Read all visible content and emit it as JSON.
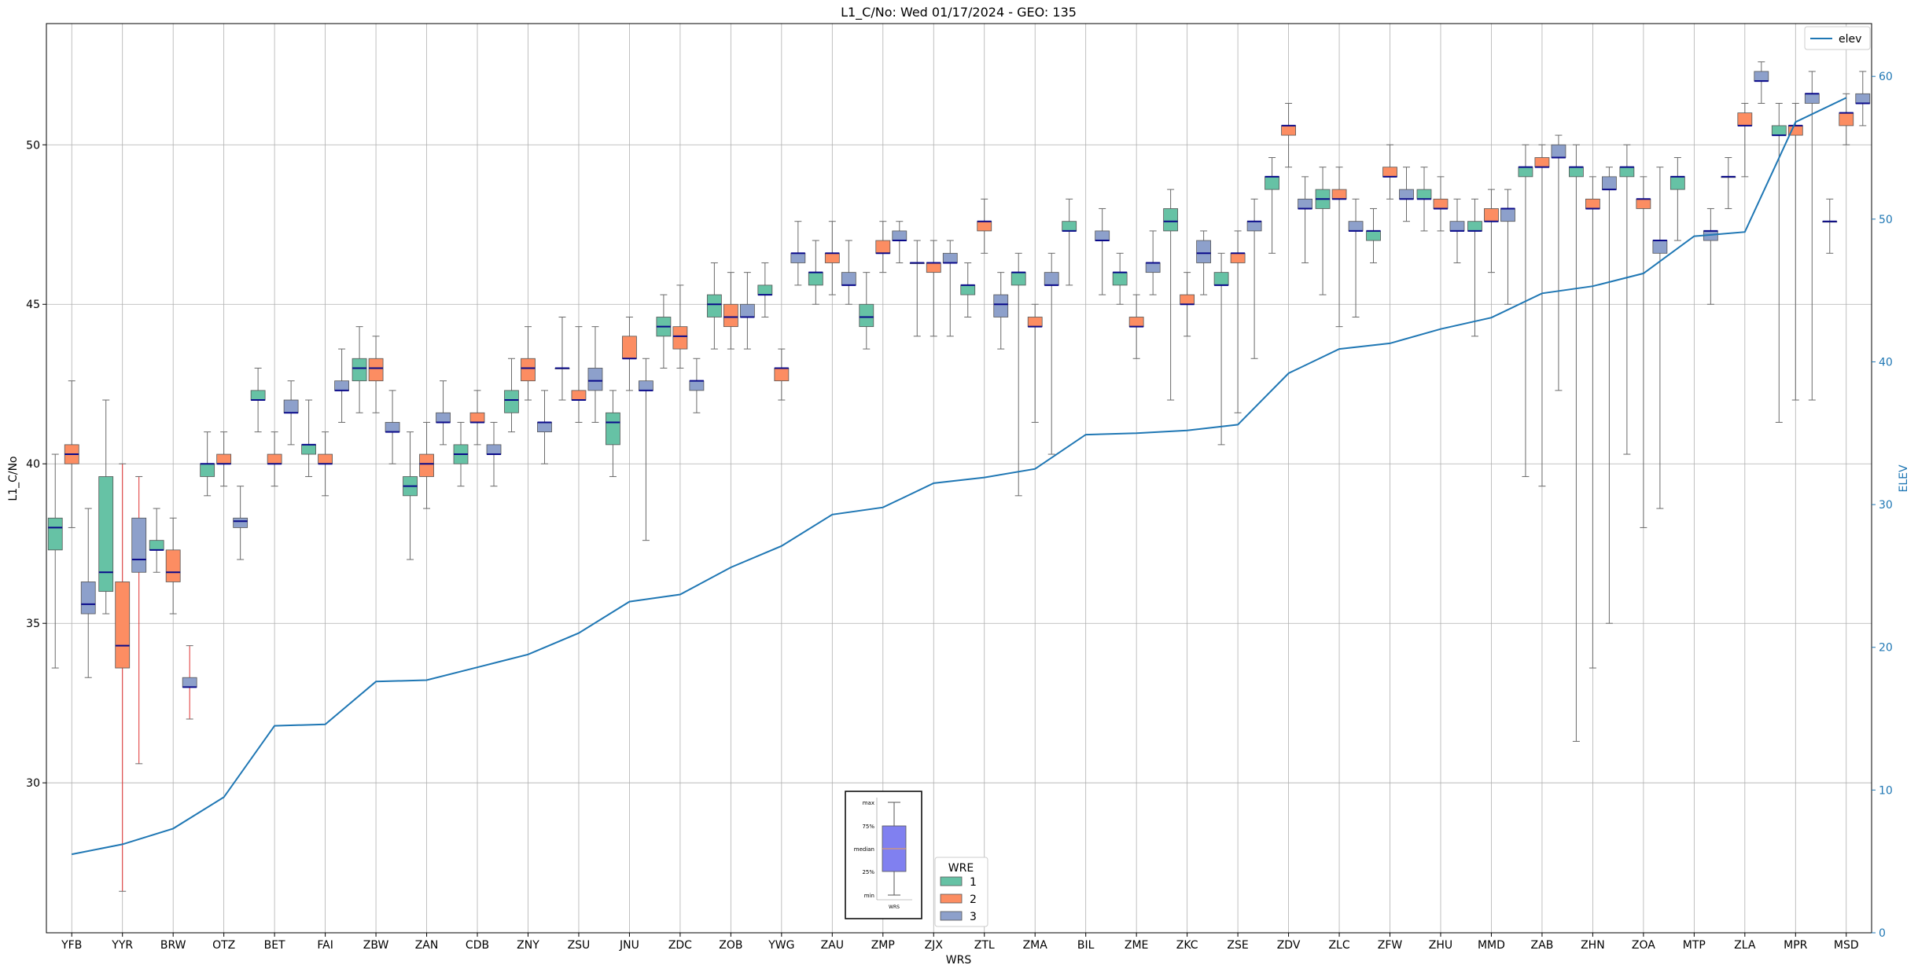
{
  "chart_data": {
    "type": "box",
    "title": "L1_C/No: Wed 01/17/2024 - GEO: 135",
    "xlabel": "WRS",
    "ylabel": "L1_C/No",
    "y2label": "ELEV",
    "ylim": [
      25.3,
      53.8
    ],
    "y2lim": [
      0,
      63.7
    ],
    "yticks": [
      30,
      35,
      40,
      45,
      50
    ],
    "y2ticks": [
      0,
      10,
      20,
      30,
      40,
      50,
      60
    ],
    "grid": true,
    "stations": [
      "YFB",
      "YYR",
      "BRW",
      "OTZ",
      "BET",
      "FAI",
      "ZBW",
      "ZAN",
      "CDB",
      "ZNY",
      "ZSU",
      "JNU",
      "ZDC",
      "ZOB",
      "YWG",
      "ZAU",
      "ZMP",
      "ZJX",
      "ZTL",
      "ZMA",
      "BIL",
      "ZME",
      "ZKC",
      "ZSE",
      "ZDV",
      "ZLC",
      "ZFW",
      "ZHU",
      "MMD",
      "ZAB",
      "ZHN",
      "ZOA",
      "MTP",
      "ZLA",
      "MPR",
      "MSD"
    ],
    "series_colors": {
      "1": "#66c2a5",
      "2": "#fc8d62",
      "3": "#8da0cb"
    },
    "legend_main": {
      "entries": [
        "elev"
      ],
      "placement": "top-right"
    },
    "legend_wre": {
      "title": "WRE",
      "entries": [
        "1",
        "2",
        "3"
      ],
      "placement": "bottom-center"
    },
    "box_key": {
      "labels": [
        "max",
        "75%",
        "median",
        "25%",
        "min"
      ],
      "xlabel": "WRS"
    },
    "elev": {
      "name": "elev",
      "color": "#1f77b4",
      "values": [
        5.5,
        6.2,
        7.3,
        9.5,
        14.5,
        14.6,
        17.6,
        17.7,
        18.6,
        19.5,
        21.0,
        23.2,
        23.7,
        25.6,
        27.1,
        29.3,
        29.8,
        31.5,
        31.9,
        32.5,
        34.9,
        35.0,
        35.2,
        35.6,
        39.2,
        40.9,
        41.3,
        42.3,
        43.1,
        44.8,
        45.3,
        46.2,
        48.8,
        49.1,
        56.8,
        58.5
      ]
    },
    "boxes": [
      {
        "station": "YFB",
        "wre": 1,
        "min": 33.6,
        "q1": 37.3,
        "median": 38.0,
        "q3": 38.3,
        "max": 40.3
      },
      {
        "station": "YFB",
        "wre": 2,
        "min": 38.0,
        "q1": 40.0,
        "median": 40.3,
        "q3": 40.6,
        "max": 42.6
      },
      {
        "station": "YFB",
        "wre": 3,
        "min": 33.3,
        "q1": 35.3,
        "median": 35.6,
        "q3": 36.3,
        "max": 38.6
      },
      {
        "station": "YYR",
        "wre": 1,
        "min": 35.3,
        "q1": 36.0,
        "median": 36.6,
        "q3": 39.6,
        "max": 42.0
      },
      {
        "station": "YYR",
        "wre": 2,
        "min": 26.6,
        "q1": 33.6,
        "median": 34.3,
        "q3": 36.3,
        "max": 40.0
      },
      {
        "station": "YYR",
        "wre": 3,
        "min": 30.6,
        "q1": 36.6,
        "median": 37.0,
        "q3": 38.3,
        "max": 39.6
      },
      {
        "station": "BRW",
        "wre": 1,
        "min": 36.6,
        "q1": 37.3,
        "median": 37.3,
        "q3": 37.6,
        "max": 38.6
      },
      {
        "station": "BRW",
        "wre": 2,
        "min": 35.3,
        "q1": 36.3,
        "median": 36.6,
        "q3": 37.3,
        "max": 38.3
      },
      {
        "station": "BRW",
        "wre": 3,
        "min": 32.0,
        "q1": 33.0,
        "median": 33.0,
        "q3": 33.3,
        "max": 34.3
      },
      {
        "station": "OTZ",
        "wre": 1,
        "min": 39.0,
        "q1": 39.6,
        "median": 40.0,
        "q3": 40.0,
        "max": 41.0
      },
      {
        "station": "OTZ",
        "wre": 2,
        "min": 39.3,
        "q1": 40.0,
        "median": 40.0,
        "q3": 40.3,
        "max": 41.0
      },
      {
        "station": "OTZ",
        "wre": 3,
        "min": 37.0,
        "q1": 38.0,
        "median": 38.2,
        "q3": 38.3,
        "max": 39.3
      },
      {
        "station": "BET",
        "wre": 1,
        "min": 41.0,
        "q1": 42.0,
        "median": 42.0,
        "q3": 42.3,
        "max": 43.0
      },
      {
        "station": "BET",
        "wre": 2,
        "min": 39.3,
        "q1": 40.0,
        "median": 40.0,
        "q3": 40.3,
        "max": 41.0
      },
      {
        "station": "BET",
        "wre": 3,
        "min": 40.6,
        "q1": 41.6,
        "median": 41.6,
        "q3": 42.0,
        "max": 42.6
      },
      {
        "station": "FAI",
        "wre": 1,
        "min": 39.6,
        "q1": 40.3,
        "median": 40.6,
        "q3": 40.6,
        "max": 42.0
      },
      {
        "station": "FAI",
        "wre": 2,
        "min": 39.0,
        "q1": 40.0,
        "median": 40.0,
        "q3": 40.3,
        "max": 41.0
      },
      {
        "station": "FAI",
        "wre": 3,
        "min": 41.3,
        "q1": 42.3,
        "median": 42.3,
        "q3": 42.6,
        "max": 43.6
      },
      {
        "station": "ZBW",
        "wre": 1,
        "min": 41.6,
        "q1": 42.6,
        "median": 43.0,
        "q3": 43.3,
        "max": 44.3
      },
      {
        "station": "ZBW",
        "wre": 2,
        "min": 41.6,
        "q1": 42.6,
        "median": 43.0,
        "q3": 43.3,
        "max": 44.0
      },
      {
        "station": "ZBW",
        "wre": 3,
        "min": 40.0,
        "q1": 41.0,
        "median": 41.0,
        "q3": 41.3,
        "max": 42.3
      },
      {
        "station": "ZAN",
        "wre": 1,
        "min": 37.0,
        "q1": 39.0,
        "median": 39.3,
        "q3": 39.6,
        "max": 41.0
      },
      {
        "station": "ZAN",
        "wre": 2,
        "min": 38.6,
        "q1": 39.6,
        "median": 40.0,
        "q3": 40.3,
        "max": 41.3
      },
      {
        "station": "ZAN",
        "wre": 3,
        "min": 40.6,
        "q1": 41.3,
        "median": 41.3,
        "q3": 41.6,
        "max": 42.6
      },
      {
        "station": "CDB",
        "wre": 1,
        "min": 39.3,
        "q1": 40.0,
        "median": 40.3,
        "q3": 40.6,
        "max": 41.3
      },
      {
        "station": "CDB",
        "wre": 2,
        "min": 40.6,
        "q1": 41.3,
        "median": 41.3,
        "q3": 41.6,
        "max": 42.3
      },
      {
        "station": "CDB",
        "wre": 3,
        "min": 39.3,
        "q1": 40.3,
        "median": 40.3,
        "q3": 40.6,
        "max": 41.3
      },
      {
        "station": "ZNY",
        "wre": 1,
        "min": 41.0,
        "q1": 41.6,
        "median": 42.0,
        "q3": 42.3,
        "max": 43.3
      },
      {
        "station": "ZNY",
        "wre": 2,
        "min": 42.0,
        "q1": 42.6,
        "median": 43.0,
        "q3": 43.3,
        "max": 44.3
      },
      {
        "station": "ZNY",
        "wre": 3,
        "min": 40.0,
        "q1": 41.0,
        "median": 41.3,
        "q3": 41.3,
        "max": 42.3
      },
      {
        "station": "ZSU",
        "wre": 1,
        "min": 42.0,
        "q1": 43.0,
        "median": 43.0,
        "q3": 43.0,
        "max": 44.6
      },
      {
        "station": "ZSU",
        "wre": 2,
        "min": 41.3,
        "q1": 42.0,
        "median": 42.0,
        "q3": 42.3,
        "max": 44.3
      },
      {
        "station": "ZSU",
        "wre": 3,
        "min": 41.3,
        "q1": 42.3,
        "median": 42.6,
        "q3": 43.0,
        "max": 44.3
      },
      {
        "station": "JNU",
        "wre": 1,
        "min": 39.6,
        "q1": 40.6,
        "median": 41.3,
        "q3": 41.6,
        "max": 42.3
      },
      {
        "station": "JNU",
        "wre": 2,
        "min": 42.3,
        "q1": 43.3,
        "median": 43.3,
        "q3": 44.0,
        "max": 44.6
      },
      {
        "station": "JNU",
        "wre": 3,
        "min": 37.6,
        "q1": 42.3,
        "median": 42.3,
        "q3": 42.6,
        "max": 43.3
      },
      {
        "station": "ZDC",
        "wre": 1,
        "min": 43.0,
        "q1": 44.0,
        "median": 44.3,
        "q3": 44.6,
        "max": 45.3
      },
      {
        "station": "ZDC",
        "wre": 2,
        "min": 43.0,
        "q1": 43.6,
        "median": 44.0,
        "q3": 44.3,
        "max": 45.6
      },
      {
        "station": "ZDC",
        "wre": 3,
        "min": 41.6,
        "q1": 42.3,
        "median": 42.6,
        "q3": 42.6,
        "max": 43.3
      },
      {
        "station": "ZOB",
        "wre": 1,
        "min": 43.6,
        "q1": 44.6,
        "median": 45.0,
        "q3": 45.3,
        "max": 46.3
      },
      {
        "station": "ZOB",
        "wre": 2,
        "min": 43.6,
        "q1": 44.3,
        "median": 44.6,
        "q3": 45.0,
        "max": 46.0
      },
      {
        "station": "ZOB",
        "wre": 3,
        "min": 43.6,
        "q1": 44.6,
        "median": 44.6,
        "q3": 45.0,
        "max": 46.0
      },
      {
        "station": "YWG",
        "wre": 1,
        "min": 44.6,
        "q1": 45.3,
        "median": 45.3,
        "q3": 45.6,
        "max": 46.3
      },
      {
        "station": "YWG",
        "wre": 2,
        "min": 42.0,
        "q1": 42.6,
        "median": 43.0,
        "q3": 43.0,
        "max": 43.6
      },
      {
        "station": "YWG",
        "wre": 3,
        "min": 45.6,
        "q1": 46.3,
        "median": 46.6,
        "q3": 46.6,
        "max": 47.6
      },
      {
        "station": "ZAU",
        "wre": 1,
        "min": 45.0,
        "q1": 45.6,
        "median": 46.0,
        "q3": 46.0,
        "max": 47.0
      },
      {
        "station": "ZAU",
        "wre": 2,
        "min": 45.3,
        "q1": 46.3,
        "median": 46.6,
        "q3": 46.6,
        "max": 47.6
      },
      {
        "station": "ZAU",
        "wre": 3,
        "min": 45.0,
        "q1": 45.6,
        "median": 45.6,
        "q3": 46.0,
        "max": 47.0
      },
      {
        "station": "ZMP",
        "wre": 1,
        "min": 43.6,
        "q1": 44.3,
        "median": 44.6,
        "q3": 45.0,
        "max": 46.0
      },
      {
        "station": "ZMP",
        "wre": 2,
        "min": 46.0,
        "q1": 46.6,
        "median": 46.6,
        "q3": 47.0,
        "max": 47.6
      },
      {
        "station": "ZMP",
        "wre": 3,
        "min": 46.3,
        "q1": 47.0,
        "median": 47.0,
        "q3": 47.3,
        "max": 47.6
      },
      {
        "station": "ZJX",
        "wre": 1,
        "min": 44.0,
        "q1": 46.3,
        "median": 46.3,
        "q3": 46.3,
        "max": 47.0
      },
      {
        "station": "ZJX",
        "wre": 2,
        "min": 44.0,
        "q1": 46.0,
        "median": 46.3,
        "q3": 46.3,
        "max": 47.0
      },
      {
        "station": "ZJX",
        "wre": 3,
        "min": 44.0,
        "q1": 46.3,
        "median": 46.3,
        "q3": 46.6,
        "max": 47.0
      },
      {
        "station": "ZTL",
        "wre": 1,
        "min": 44.6,
        "q1": 45.3,
        "median": 45.6,
        "q3": 45.6,
        "max": 46.3
      },
      {
        "station": "ZTL",
        "wre": 2,
        "min": 46.6,
        "q1": 47.3,
        "median": 47.6,
        "q3": 47.6,
        "max": 48.3
      },
      {
        "station": "ZTL",
        "wre": 3,
        "min": 43.6,
        "q1": 44.6,
        "median": 45.0,
        "q3": 45.3,
        "max": 46.0
      },
      {
        "station": "ZMA",
        "wre": 1,
        "min": 39.0,
        "q1": 45.6,
        "median": 46.0,
        "q3": 46.0,
        "max": 46.6
      },
      {
        "station": "ZMA",
        "wre": 2,
        "min": 41.3,
        "q1": 44.3,
        "median": 44.3,
        "q3": 44.6,
        "max": 45.0
      },
      {
        "station": "ZMA",
        "wre": 3,
        "min": 40.3,
        "q1": 45.6,
        "median": 45.6,
        "q3": 46.0,
        "max": 46.6
      },
      {
        "station": "BIL",
        "wre": 1,
        "min": 45.6,
        "q1": 47.3,
        "median": 47.3,
        "q3": 47.6,
        "max": 48.3
      },
      {
        "station": "BIL",
        "wre": 3,
        "min": 45.3,
        "q1": 47.0,
        "median": 47.0,
        "q3": 47.3,
        "max": 48.0
      },
      {
        "station": "ZME",
        "wre": 1,
        "min": 45.0,
        "q1": 45.6,
        "median": 46.0,
        "q3": 46.0,
        "max": 46.6
      },
      {
        "station": "ZME",
        "wre": 2,
        "min": 43.3,
        "q1": 44.3,
        "median": 44.3,
        "q3": 44.6,
        "max": 45.3
      },
      {
        "station": "ZME",
        "wre": 3,
        "min": 45.3,
        "q1": 46.0,
        "median": 46.3,
        "q3": 46.3,
        "max": 47.3
      },
      {
        "station": "ZKC",
        "wre": 1,
        "min": 42.0,
        "q1": 47.3,
        "median": 47.6,
        "q3": 48.0,
        "max": 48.6
      },
      {
        "station": "ZKC",
        "wre": 2,
        "min": 44.0,
        "q1": 45.0,
        "median": 45.0,
        "q3": 45.3,
        "max": 46.0
      },
      {
        "station": "ZKC",
        "wre": 3,
        "min": 45.3,
        "q1": 46.3,
        "median": 46.6,
        "q3": 47.0,
        "max": 47.3
      },
      {
        "station": "ZSE",
        "wre": 1,
        "min": 40.6,
        "q1": 45.6,
        "median": 45.6,
        "q3": 46.0,
        "max": 46.6
      },
      {
        "station": "ZSE",
        "wre": 2,
        "min": 41.6,
        "q1": 46.3,
        "median": 46.6,
        "q3": 46.6,
        "max": 47.3
      },
      {
        "station": "ZSE",
        "wre": 3,
        "min": 43.3,
        "q1": 47.3,
        "median": 47.6,
        "q3": 47.6,
        "max": 48.3
      },
      {
        "station": "ZDV",
        "wre": 1,
        "min": 46.6,
        "q1": 48.6,
        "median": 49.0,
        "q3": 49.0,
        "max": 49.6
      },
      {
        "station": "ZDV",
        "wre": 2,
        "min": 49.3,
        "q1": 50.3,
        "median": 50.6,
        "q3": 50.6,
        "max": 51.3
      },
      {
        "station": "ZDV",
        "wre": 3,
        "min": 46.3,
        "q1": 48.0,
        "median": 48.0,
        "q3": 48.3,
        "max": 49.0
      },
      {
        "station": "ZLC",
        "wre": 1,
        "min": 45.3,
        "q1": 48.0,
        "median": 48.3,
        "q3": 48.6,
        "max": 49.3
      },
      {
        "station": "ZLC",
        "wre": 2,
        "min": 44.3,
        "q1": 48.3,
        "median": 48.3,
        "q3": 48.6,
        "max": 49.3
      },
      {
        "station": "ZLC",
        "wre": 3,
        "min": 44.6,
        "q1": 47.3,
        "median": 47.3,
        "q3": 47.6,
        "max": 48.3
      },
      {
        "station": "ZFW",
        "wre": 1,
        "min": 46.3,
        "q1": 47.0,
        "median": 47.3,
        "q3": 47.3,
        "max": 48.0
      },
      {
        "station": "ZFW",
        "wre": 2,
        "min": 48.3,
        "q1": 49.0,
        "median": 49.0,
        "q3": 49.3,
        "max": 50.0
      },
      {
        "station": "ZFW",
        "wre": 3,
        "min": 47.6,
        "q1": 48.3,
        "median": 48.3,
        "q3": 48.6,
        "max": 49.3
      },
      {
        "station": "ZHU",
        "wre": 1,
        "min": 47.3,
        "q1": 48.3,
        "median": 48.3,
        "q3": 48.6,
        "max": 49.3
      },
      {
        "station": "ZHU",
        "wre": 2,
        "min": 47.3,
        "q1": 48.0,
        "median": 48.0,
        "q3": 48.3,
        "max": 49.0
      },
      {
        "station": "ZHU",
        "wre": 3,
        "min": 46.3,
        "q1": 47.3,
        "median": 47.3,
        "q3": 47.6,
        "max": 48.3
      },
      {
        "station": "MMD",
        "wre": 1,
        "min": 44.0,
        "q1": 47.3,
        "median": 47.3,
        "q3": 47.6,
        "max": 48.3
      },
      {
        "station": "MMD",
        "wre": 2,
        "min": 46.0,
        "q1": 47.6,
        "median": 47.6,
        "q3": 48.0,
        "max": 48.6
      },
      {
        "station": "MMD",
        "wre": 3,
        "min": 45.0,
        "q1": 47.6,
        "median": 48.0,
        "q3": 48.0,
        "max": 48.6
      },
      {
        "station": "ZAB",
        "wre": 1,
        "min": 39.6,
        "q1": 49.0,
        "median": 49.3,
        "q3": 49.3,
        "max": 50.0
      },
      {
        "station": "ZAB",
        "wre": 2,
        "min": 39.3,
        "q1": 49.3,
        "median": 49.3,
        "q3": 49.6,
        "max": 50.0
      },
      {
        "station": "ZAB",
        "wre": 3,
        "min": 42.3,
        "q1": 49.6,
        "median": 49.6,
        "q3": 50.0,
        "max": 50.3
      },
      {
        "station": "ZHN",
        "wre": 1,
        "min": 31.3,
        "q1": 49.0,
        "median": 49.3,
        "q3": 49.3,
        "max": 50.0
      },
      {
        "station": "ZHN",
        "wre": 2,
        "min": 33.6,
        "q1": 48.0,
        "median": 48.0,
        "q3": 48.3,
        "max": 49.0
      },
      {
        "station": "ZHN",
        "wre": 3,
        "min": 35.0,
        "q1": 48.6,
        "median": 48.6,
        "q3": 49.0,
        "max": 49.3
      },
      {
        "station": "ZOA",
        "wre": 1,
        "min": 40.3,
        "q1": 49.0,
        "median": 49.3,
        "q3": 49.3,
        "max": 50.0
      },
      {
        "station": "ZOA",
        "wre": 2,
        "min": 38.0,
        "q1": 48.0,
        "median": 48.3,
        "q3": 48.3,
        "max": 49.0
      },
      {
        "station": "ZOA",
        "wre": 3,
        "min": 38.6,
        "q1": 46.6,
        "median": 47.0,
        "q3": 47.0,
        "max": 49.3
      },
      {
        "station": "MTP",
        "wre": 1,
        "min": 47.0,
        "q1": 48.6,
        "median": 49.0,
        "q3": 49.0,
        "max": 49.6
      },
      {
        "station": "MTP",
        "wre": 3,
        "min": 45.0,
        "q1": 47.0,
        "median": 47.3,
        "q3": 47.3,
        "max": 48.0
      },
      {
        "station": "ZLA",
        "wre": 1,
        "min": 48.0,
        "q1": 49.0,
        "median": 49.0,
        "q3": 49.0,
        "max": 49.6
      },
      {
        "station": "ZLA",
        "wre": 2,
        "min": 49.0,
        "q1": 50.6,
        "median": 50.6,
        "q3": 51.0,
        "max": 51.3
      },
      {
        "station": "ZLA",
        "wre": 3,
        "min": 51.3,
        "q1": 52.0,
        "median": 52.0,
        "q3": 52.3,
        "max": 52.6
      },
      {
        "station": "MPR",
        "wre": 1,
        "min": 41.3,
        "q1": 50.3,
        "median": 50.3,
        "q3": 50.6,
        "max": 51.3
      },
      {
        "station": "MPR",
        "wre": 2,
        "min": 42.0,
        "q1": 50.3,
        "median": 50.6,
        "q3": 50.6,
        "max": 51.3
      },
      {
        "station": "MPR",
        "wre": 3,
        "min": 42.0,
        "q1": 51.3,
        "median": 51.6,
        "q3": 51.6,
        "max": 52.3
      },
      {
        "station": "MSD",
        "wre": 1,
        "min": 46.6,
        "q1": 47.6,
        "median": 47.6,
        "q3": 47.6,
        "max": 48.3
      },
      {
        "station": "MSD",
        "wre": 2,
        "min": 50.0,
        "q1": 50.6,
        "median": 51.0,
        "q3": 51.0,
        "max": 51.6
      },
      {
        "station": "MSD",
        "wre": 3,
        "min": 50.6,
        "q1": 51.3,
        "median": 51.3,
        "q3": 51.6,
        "max": 52.3
      }
    ]
  }
}
